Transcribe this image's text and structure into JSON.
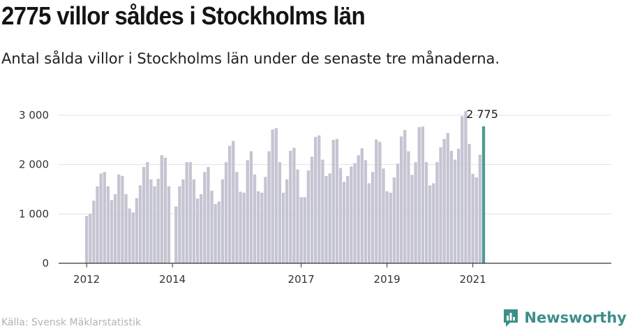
{
  "title": "2775 villor såldes i Stockholms län",
  "subtitle": "Antal sålda villor i Stockholms län under de senaste tre månaderna.",
  "source": "Källa: Svensk Mäklarstatistik",
  "brand": "Newsworthy",
  "colors": {
    "bar": "#c5c4d2",
    "highlight": "#4e9a92",
    "brand": "#3d8f88",
    "grid": "#e1e1e1",
    "axis": "#333333"
  },
  "chart_data": {
    "type": "bar",
    "title": "2775 villor såldes i Stockholms län",
    "subtitle": "Antal sålda villor i Stockholms län under de senaste tre månaderna.",
    "xlabel": "",
    "ylabel": "",
    "ylim": [
      0,
      3200
    ],
    "y_ticks": [
      0,
      1000,
      2000,
      3000
    ],
    "y_tick_labels": [
      "0",
      "1 000",
      "2 000",
      "3 000"
    ],
    "x_ticks": [
      "2012",
      "2014",
      "2017",
      "2019",
      "2021"
    ],
    "x_tick_positions": [
      "2012-01",
      "2014-01",
      "2017-01",
      "2019-01",
      "2021-01"
    ],
    "grid": true,
    "start": "2012-01",
    "highlight_label": "2 775",
    "categories": [
      "2012-01",
      "2012-02",
      "2012-03",
      "2012-04",
      "2012-05",
      "2012-06",
      "2012-07",
      "2012-08",
      "2012-09",
      "2012-10",
      "2012-11",
      "2012-12",
      "2013-01",
      "2013-02",
      "2013-03",
      "2013-04",
      "2013-05",
      "2013-06",
      "2013-07",
      "2013-08",
      "2013-09",
      "2013-10",
      "2013-11",
      "2013-12",
      "2014-01",
      "2014-02",
      "2014-03",
      "2014-04",
      "2014-05",
      "2014-06",
      "2014-07",
      "2014-08",
      "2014-09",
      "2014-10",
      "2014-11",
      "2014-12",
      "2015-01",
      "2015-02",
      "2015-03",
      "2015-04",
      "2015-05",
      "2015-06",
      "2015-07",
      "2015-08",
      "2015-09",
      "2015-10",
      "2015-11",
      "2015-12",
      "2016-01",
      "2016-02",
      "2016-03",
      "2016-04",
      "2016-05",
      "2016-06",
      "2016-07",
      "2016-08",
      "2016-09",
      "2016-10",
      "2016-11",
      "2016-12",
      "2017-01",
      "2017-02",
      "2017-03",
      "2017-04",
      "2017-05",
      "2017-06",
      "2017-07",
      "2017-08",
      "2017-09",
      "2017-10",
      "2017-11",
      "2017-12",
      "2018-01",
      "2018-02",
      "2018-03",
      "2018-04",
      "2018-05",
      "2018-06",
      "2018-07",
      "2018-08",
      "2018-09",
      "2018-10",
      "2018-11",
      "2018-12",
      "2019-01",
      "2019-02",
      "2019-03",
      "2019-04",
      "2019-05",
      "2019-06",
      "2019-07",
      "2019-08",
      "2019-09",
      "2019-10",
      "2019-11",
      "2019-12",
      "2020-01",
      "2020-02",
      "2020-03",
      "2020-04",
      "2020-05",
      "2020-06",
      "2020-07",
      "2020-08",
      "2020-09",
      "2020-10",
      "2020-11",
      "2020-12",
      "2021-01",
      "2021-02",
      "2021-03",
      "2021-04"
    ],
    "values": [
      960,
      1000,
      1270,
      1560,
      1820,
      1850,
      1560,
      1280,
      1400,
      1800,
      1770,
      1400,
      1110,
      1030,
      1320,
      1580,
      1950,
      2050,
      1700,
      1560,
      1710,
      2190,
      2140,
      1560,
      null,
      1150,
      1560,
      1700,
      2050,
      2050,
      1700,
      1310,
      1400,
      1850,
      1950,
      1470,
      1200,
      1250,
      1700,
      2050,
      2380,
      2480,
      1850,
      1450,
      1430,
      2090,
      2270,
      1800,
      1460,
      1430,
      1750,
      2270,
      2710,
      2740,
      2050,
      1430,
      1700,
      2280,
      2340,
      1900,
      1340,
      1340,
      1880,
      2160,
      2560,
      2590,
      2100,
      1770,
      1820,
      2500,
      2520,
      1930,
      1650,
      1770,
      1960,
      2030,
      2190,
      2330,
      2090,
      1620,
      1850,
      2510,
      2460,
      1920,
      1460,
      1430,
      1740,
      2020,
      2570,
      2700,
      2270,
      1790,
      2050,
      2760,
      2770,
      2050,
      1580,
      1620,
      2050,
      2350,
      2520,
      2640,
      2280,
      2100,
      2320,
      2980,
      3080,
      2420,
      1810,
      1740,
      2200,
      2775
    ]
  }
}
